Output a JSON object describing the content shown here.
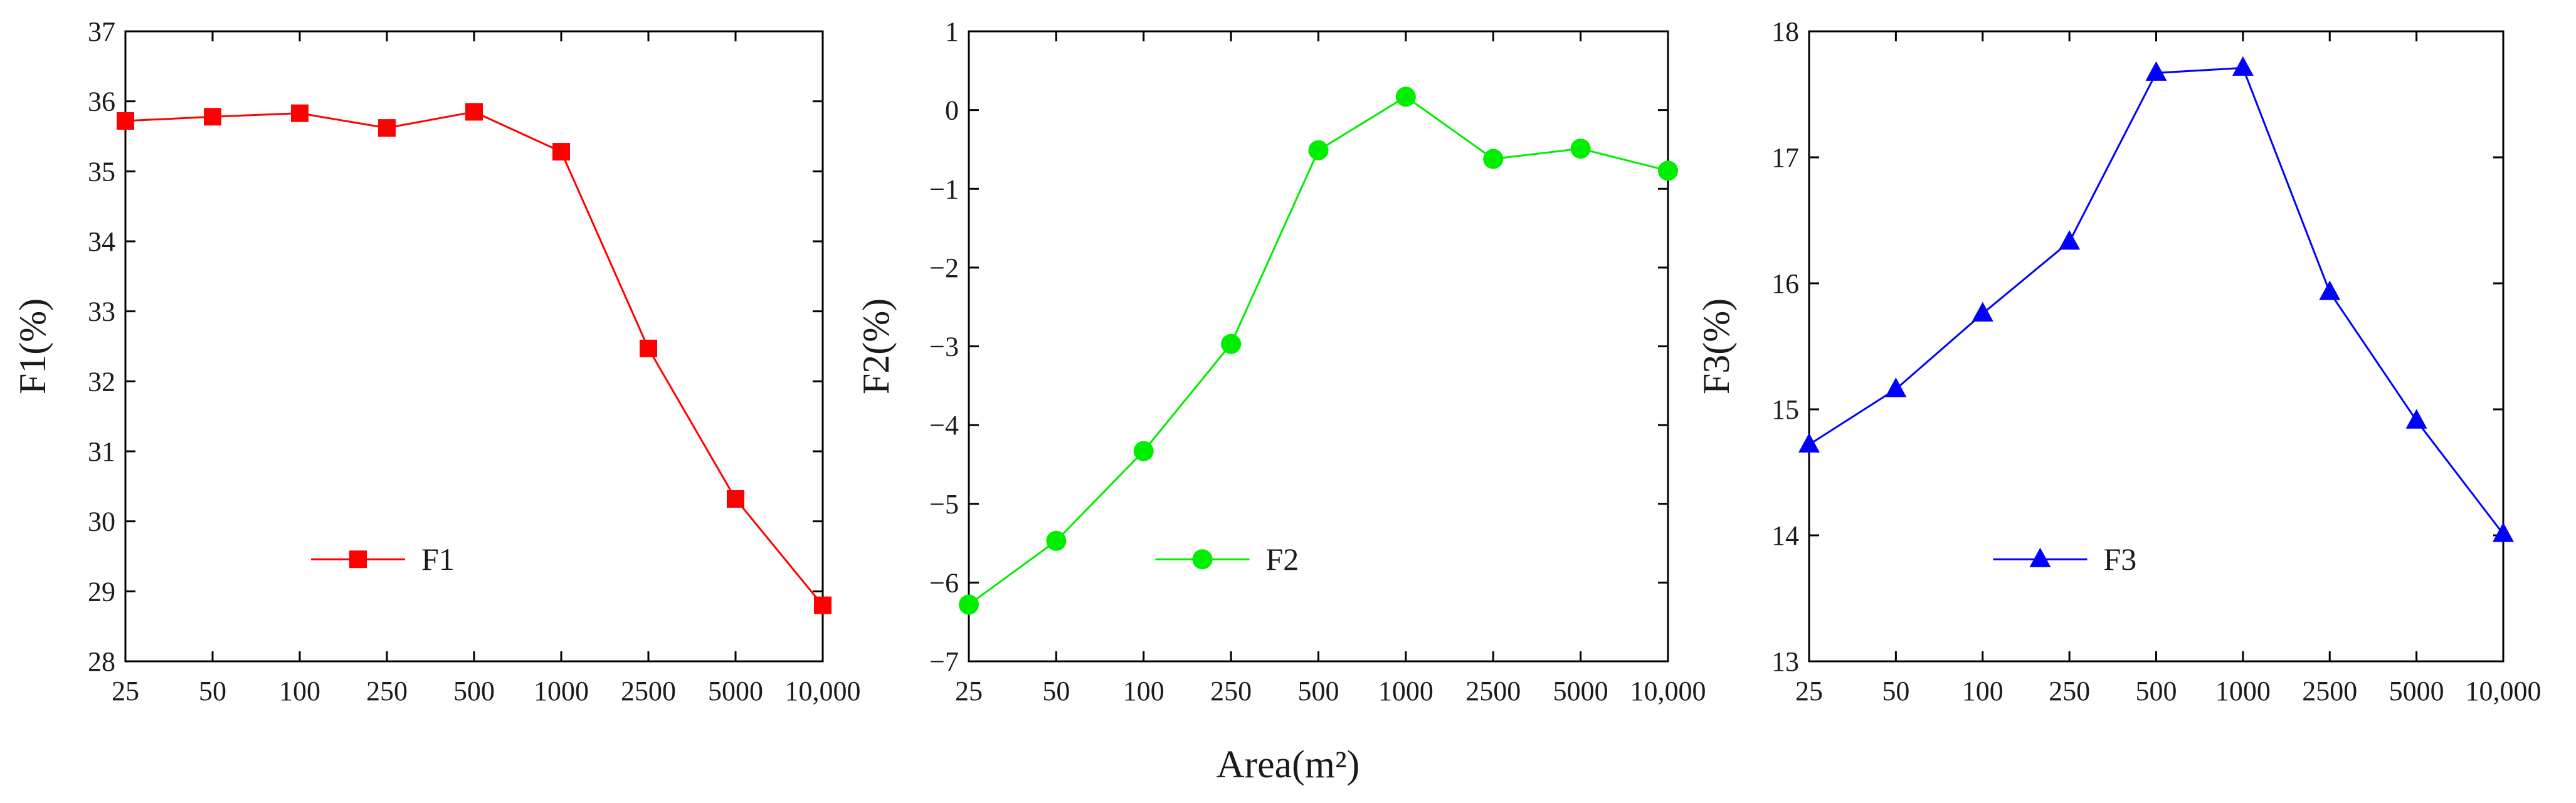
{
  "shared_xlabel": "Area(m²)",
  "chart_data": [
    {
      "type": "line",
      "title": "",
      "xlabel": "",
      "ylabel": "F1(%)",
      "categories": [
        "25",
        "50",
        "100",
        "250",
        "500",
        "1000",
        "2500",
        "5000",
        "10,000"
      ],
      "yticks": [
        "28",
        "29",
        "30",
        "31",
        "32",
        "33",
        "34",
        "35",
        "36",
        "37"
      ],
      "ylim": [
        28,
        37
      ],
      "grid": false,
      "legend_position": "bottom-center",
      "series": [
        {
          "name": "F1",
          "color": "#ff0000",
          "marker": "square",
          "values": [
            35.72,
            35.78,
            35.83,
            35.62,
            35.85,
            35.28,
            32.47,
            30.32,
            28.8
          ]
        }
      ]
    },
    {
      "type": "line",
      "title": "",
      "xlabel": "",
      "ylabel": "F2(%)",
      "categories": [
        "25",
        "50",
        "100",
        "250",
        "500",
        "1000",
        "2500",
        "5000",
        "10,000"
      ],
      "yticks": [
        "−7",
        "−6",
        "−5",
        "−4",
        "−3",
        "−2",
        "−1",
        "0",
        "1"
      ],
      "ylim": [
        -7,
        1
      ],
      "grid": false,
      "legend_position": "bottom-center",
      "series": [
        {
          "name": "F2",
          "color": "#00ee00",
          "marker": "circle",
          "values": [
            -6.28,
            -5.47,
            -4.33,
            -2.97,
            -0.51,
            0.17,
            -0.62,
            -0.49,
            -0.77
          ]
        }
      ]
    },
    {
      "type": "line",
      "title": "",
      "xlabel": "",
      "ylabel": "F3(%)",
      "categories": [
        "25",
        "50",
        "100",
        "250",
        "500",
        "1000",
        "2500",
        "5000",
        "10,000"
      ],
      "yticks": [
        "13",
        "14",
        "15",
        "16",
        "17",
        "18"
      ],
      "ylim": [
        13,
        18
      ],
      "grid": false,
      "legend_position": "bottom-center",
      "series": [
        {
          "name": "F3",
          "color": "#0000ff",
          "marker": "triangle",
          "values": [
            14.72,
            15.16,
            15.76,
            16.33,
            17.67,
            17.71,
            15.93,
            14.91,
            14.01
          ]
        }
      ]
    }
  ]
}
